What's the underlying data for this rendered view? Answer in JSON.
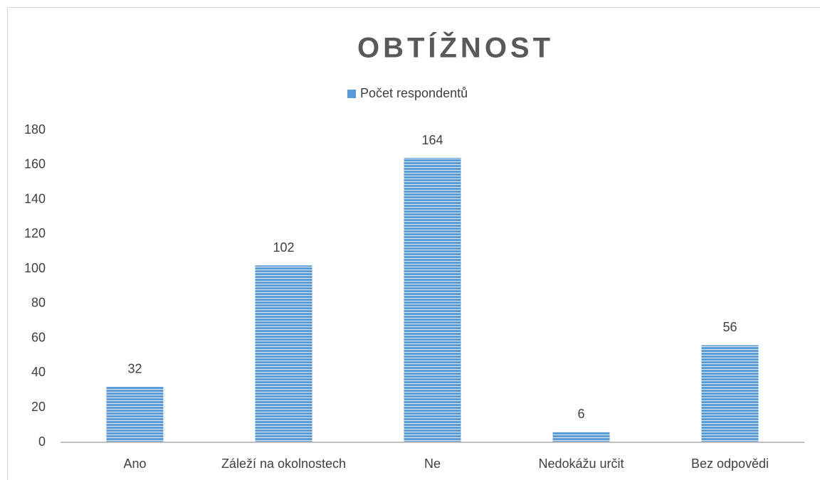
{
  "chart_data": {
    "type": "bar",
    "title": "OBTÍŽNOST",
    "categories": [
      "Ano",
      "Záleží na okolnostech",
      "Ne",
      "Nedokážu určit",
      "Bez odpovědi"
    ],
    "series": [
      {
        "name": "Počet respondentů",
        "color": "#5b9bd5",
        "values": [
          32,
          102,
          164,
          6,
          56
        ]
      }
    ],
    "ylim": [
      0,
      180
    ],
    "yticks": [
      0,
      20,
      40,
      60,
      80,
      100,
      120,
      140,
      160,
      180
    ],
    "grid": false,
    "legend": "top"
  }
}
